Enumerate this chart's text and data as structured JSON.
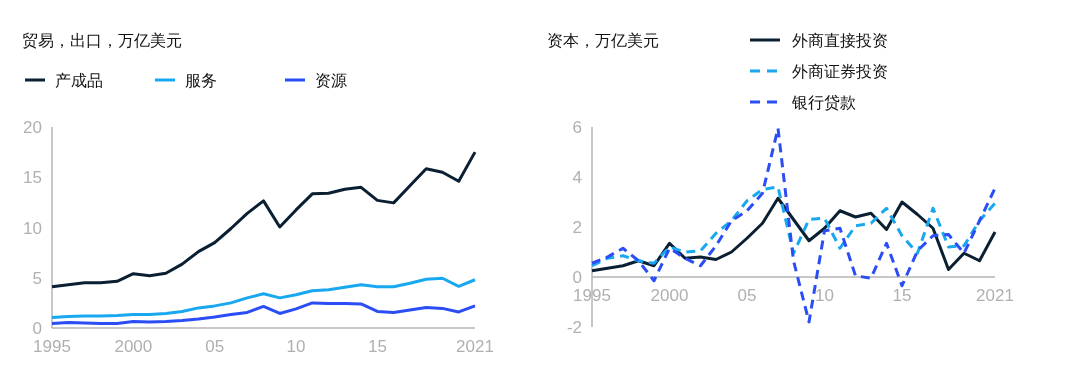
{
  "chart_data": [
    {
      "type": "line",
      "title": "贸易，出口，万亿美元",
      "legend": "top left",
      "grid": false,
      "x": [
        1995,
        1996,
        1997,
        1998,
        1999,
        2000,
        2001,
        2002,
        2003,
        2004,
        2005,
        2006,
        2007,
        2008,
        2009,
        2010,
        2011,
        2012,
        2013,
        2014,
        2015,
        2016,
        2017,
        2018,
        2019,
        2020,
        2021
      ],
      "xlim": [
        1995,
        2021
      ],
      "xticks": [
        1995,
        2000,
        {
          "value": 2005,
          "label": "05"
        },
        {
          "value": 2010,
          "label": "10"
        },
        {
          "value": 2015,
          "label": "15"
        },
        2021
      ],
      "ylim": [
        0,
        20
      ],
      "yticks": [
        0,
        5,
        10,
        15,
        20
      ],
      "series": [
        {
          "name": "产成品",
          "color": "#0b1f33",
          "line_style": "solid",
          "values": [
            4.1,
            4.3,
            4.5,
            4.5,
            4.65,
            5.4,
            5.2,
            5.45,
            6.35,
            7.6,
            8.5,
            9.9,
            11.4,
            12.65,
            10.05,
            11.75,
            13.35,
            13.4,
            13.8,
            14.0,
            12.7,
            12.45,
            14.15,
            15.85,
            15.5,
            14.6,
            17.5
          ]
        },
        {
          "name": "服务",
          "color": "#17a8f0",
          "line_style": "solid",
          "values": [
            1.05,
            1.15,
            1.2,
            1.2,
            1.25,
            1.35,
            1.35,
            1.45,
            1.65,
            2.0,
            2.2,
            2.5,
            3.0,
            3.4,
            3.0,
            3.3,
            3.7,
            3.8,
            4.05,
            4.3,
            4.1,
            4.1,
            4.45,
            4.85,
            4.95,
            4.15,
            4.8
          ]
        },
        {
          "name": "资源",
          "color": "#2a4df5",
          "line_style": "solid",
          "values": [
            0.45,
            0.55,
            0.5,
            0.45,
            0.45,
            0.65,
            0.6,
            0.65,
            0.75,
            0.9,
            1.1,
            1.35,
            1.55,
            2.15,
            1.45,
            1.9,
            2.5,
            2.45,
            2.45,
            2.4,
            1.65,
            1.55,
            1.8,
            2.05,
            1.95,
            1.6,
            2.2
          ]
        }
      ]
    },
    {
      "type": "line",
      "title": "资本，万亿美元",
      "legend": "top right",
      "grid": false,
      "x": [
        1995,
        1996,
        1997,
        1998,
        1999,
        2000,
        2001,
        2002,
        2003,
        2004,
        2005,
        2006,
        2007,
        2008,
        2009,
        2010,
        2011,
        2012,
        2013,
        2014,
        2015,
        2016,
        2017,
        2018,
        2019,
        2020,
        2021
      ],
      "xlim": [
        1995,
        2021
      ],
      "xticks": [
        1995,
        2000,
        {
          "value": 2005,
          "label": "05"
        },
        {
          "value": 2010,
          "label": "10"
        },
        {
          "value": 2015,
          "label": "15"
        },
        2021
      ],
      "ylim": [
        -2,
        6
      ],
      "yticks": [
        -2,
        0,
        2,
        4,
        6
      ],
      "series": [
        {
          "name": "外商直接投资",
          "color": "#0b1f33",
          "line_style": "solid",
          "values": [
            0.25,
            0.35,
            0.45,
            0.65,
            0.45,
            1.35,
            0.75,
            0.8,
            0.7,
            1.0,
            1.55,
            2.15,
            3.15,
            2.3,
            1.45,
            1.95,
            2.65,
            2.4,
            2.55,
            1.9,
            3.0,
            2.5,
            1.95,
            0.3,
            0.95,
            0.65,
            1.8
          ]
        },
        {
          "name": "外商证券投资",
          "color": "#17a8f0",
          "line_style": "dashed",
          "values": [
            0.45,
            0.75,
            0.85,
            0.65,
            0.55,
            1.2,
            1.0,
            1.05,
            1.75,
            2.25,
            3.05,
            3.5,
            3.6,
            0.95,
            2.3,
            2.35,
            1.15,
            2.05,
            2.15,
            2.75,
            1.65,
            0.95,
            2.75,
            1.2,
            1.25,
            2.25,
            2.95
          ]
        },
        {
          "name": "银行贷款",
          "color": "#2a4df5",
          "line_style": "dashed",
          "values": [
            0.55,
            0.8,
            1.15,
            0.65,
            -0.15,
            1.15,
            0.75,
            0.45,
            1.25,
            2.25,
            2.65,
            3.35,
            5.95,
            0.65,
            -1.8,
            1.85,
            1.95,
            0.05,
            -0.05,
            1.35,
            -0.35,
            1.05,
            1.65,
            1.7,
            0.95,
            2.25,
            3.55
          ]
        }
      ]
    }
  ]
}
